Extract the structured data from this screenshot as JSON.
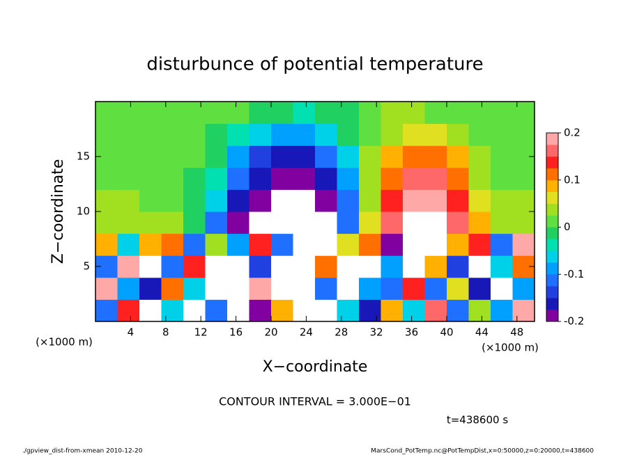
{
  "chart_data": {
    "type": "heatmap",
    "title": "disturbunce of potential temperature",
    "xlabel": "X−coordinate",
    "ylabel": "Z−coordinate",
    "x_unit": "(×1000 m)",
    "xlim": [
      0,
      50
    ],
    "ylim": [
      0,
      20
    ],
    "xticks": [
      4,
      8,
      12,
      16,
      20,
      24,
      28,
      32,
      36,
      40,
      44,
      48
    ],
    "yticks": [
      5,
      10,
      15
    ],
    "x": [
      1.25,
      3.75,
      6.25,
      8.75,
      11.25,
      13.75,
      16.25,
      18.75,
      21.25,
      23.75,
      26.25,
      28.75,
      31.25,
      33.75,
      36.25,
      38.75,
      41.25,
      43.75,
      46.25,
      48.75
    ],
    "z": [
      1,
      3,
      5,
      7,
      9,
      11,
      13,
      15,
      17,
      19
    ],
    "values": [
      [
        -0.1,
        0.14,
        -0.3,
        -0.05,
        0.26,
        -0.12,
        0.25,
        -0.2,
        0.08,
        -0.28,
        0.3,
        -0.06,
        -0.15,
        0.1,
        -0.05,
        0.16,
        -0.12,
        0.04,
        -0.08,
        0.18
      ],
      [
        0.2,
        -0.08,
        -0.15,
        0.12,
        -0.06,
        0.28,
        -0.3,
        0.18,
        -0.25,
        0.3,
        -0.1,
        0.25,
        -0.08,
        -0.12,
        0.14,
        -0.1,
        0.06,
        -0.15,
        0.22,
        -0.09
      ],
      [
        -0.12,
        0.18,
        0.25,
        -0.1,
        0.15,
        -0.25,
        0.3,
        -0.14,
        0.26,
        -0.3,
        0.12,
        -0.22,
        -0.3,
        -0.08,
        -0.25,
        0.1,
        -0.14,
        0.27,
        -0.06,
        0.12
      ],
      [
        0.1,
        -0.05,
        0.08,
        0.12,
        -0.1,
        0.04,
        -0.08,
        0.15,
        -0.12,
        0.22,
        -0.3,
        0.06,
        0.12,
        -0.18,
        0.25,
        -0.22,
        0.08,
        0.14,
        -0.1,
        0.2
      ],
      [
        0.05,
        0.05,
        0.04,
        0.03,
        0.0,
        -0.1,
        -0.18,
        -0.22,
        -0.23,
        -0.24,
        -0.21,
        -0.12,
        0.06,
        0.17,
        0.22,
        0.22,
        0.17,
        0.09,
        0.05,
        0.05
      ],
      [
        0.03,
        0.03,
        0.02,
        0.02,
        0.0,
        -0.06,
        -0.15,
        -0.2,
        -0.22,
        -0.21,
        -0.19,
        -0.1,
        0.05,
        0.15,
        0.19,
        0.19,
        0.15,
        0.07,
        0.03,
        0.03
      ],
      [
        0.02,
        0.02,
        0.01,
        0.01,
        0.0,
        -0.04,
        -0.12,
        -0.17,
        -0.19,
        -0.19,
        -0.16,
        -0.08,
        0.04,
        0.12,
        0.16,
        0.16,
        0.12,
        0.05,
        0.02,
        0.02
      ],
      [
        0.01,
        0.01,
        0.01,
        0.01,
        0.01,
        -0.02,
        -0.08,
        -0.13,
        -0.15,
        -0.15,
        -0.12,
        -0.05,
        0.03,
        0.09,
        0.12,
        0.12,
        0.08,
        0.03,
        0.02,
        0.01
      ],
      [
        0.02,
        0.01,
        0.01,
        0.01,
        0.01,
        0.0,
        -0.03,
        -0.06,
        -0.08,
        -0.08,
        -0.06,
        -0.02,
        0.02,
        0.05,
        0.07,
        0.06,
        0.04,
        0.02,
        0.01,
        0.01
      ],
      [
        0.02,
        0.02,
        0.01,
        0.01,
        0.01,
        0.01,
        0.01,
        0.0,
        -0.02,
        -0.03,
        -0.02,
        0.0,
        0.02,
        0.03,
        0.03,
        0.02,
        0.02,
        0.01,
        0.01,
        0.01
      ]
    ],
    "colorbar": {
      "levels": [
        -0.2,
        -0.175,
        -0.15,
        -0.125,
        -0.1,
        -0.075,
        -0.05,
        -0.025,
        0,
        0.025,
        0.05,
        0.075,
        0.1,
        0.125,
        0.15,
        0.175,
        0.2
      ],
      "colors": [
        "#8000a0",
        "#1818b8",
        "#2040e0",
        "#2070ff",
        "#00a0ff",
        "#00d0e8",
        "#00e0b0",
        "#20d060",
        "#60e040",
        "#a0e020",
        "#e0e020",
        "#ffb000",
        "#ff7000",
        "#ff2020",
        "#ff6868",
        "#ffa8a8"
      ],
      "ticks": [
        -0.2,
        -0.1,
        0,
        0.1,
        0.2
      ]
    },
    "contour_interval": "CONTOUR INTERVAL = 3.000E−01",
    "time_label": "t=438600 s",
    "footer_left": "./gpview_dist-from-xmean  2010-12-20",
    "footer_right": "MarsCond_PotTemp.nc@PotTempDist,x=0:50000,z=0:20000,t=438600"
  }
}
